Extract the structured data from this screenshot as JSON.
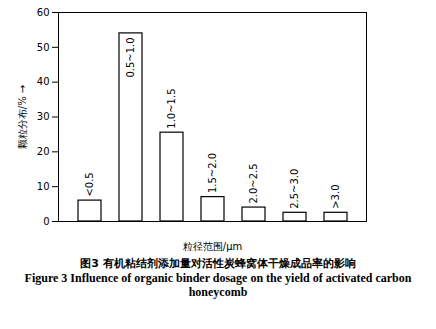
{
  "chart_data": {
    "type": "bar",
    "title": "图3 有机粘结剂添加量对活性炭蜂窝体干燥成品率的影响",
    "subtitle": "Figure 3 Influence of organic binder dosage on the yield of activated carbon honeycomb",
    "x_label": "粒径范围/μm",
    "y_label": "颗粒分布/%",
    "categories": [
      "<0.5",
      "0.5~1.0",
      "1.0~1.5",
      "1.5~2.0",
      "2.0~2.5",
      "2.5~3.0",
      ">3.0"
    ],
    "values": [
      6,
      54,
      25.5,
      7,
      4,
      2.5,
      2.5
    ],
    "color": "#ffffff",
    "ylim": [
      0,
      60
    ],
    "yticks": [
      0,
      10,
      20,
      30,
      40,
      50,
      60
    ],
    "grid": false,
    "tick_labels": "y"
  }
}
